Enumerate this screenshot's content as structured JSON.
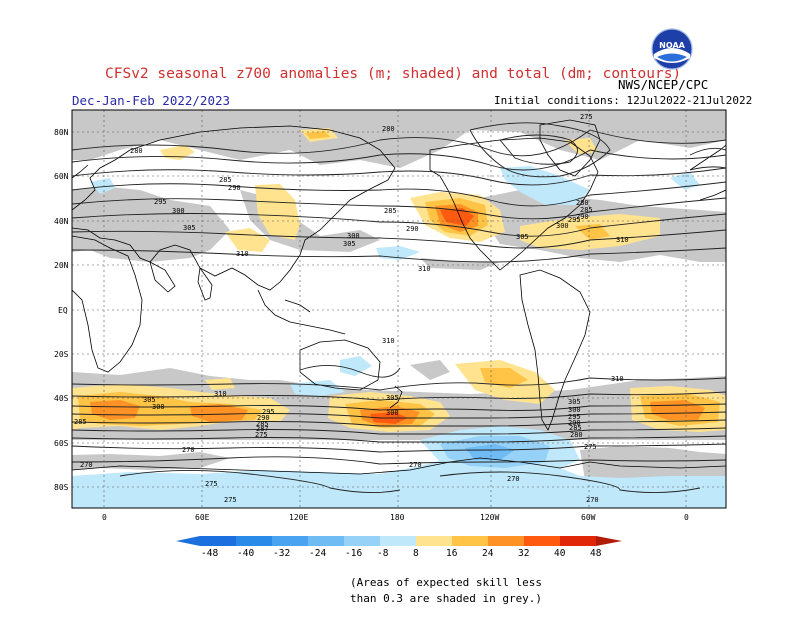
{
  "header": {
    "title": "CFSv2 seasonal z700 anomalies (m; shaded) and total (dm; contours)",
    "season": "Dec-Jan-Feb 2022/2023",
    "initial_conditions": "Initial conditions: 12Jul2022-21Jul2022",
    "agency": "NWS/NCEP/CPC",
    "logo_text": "NOAA"
  },
  "map": {
    "lat_labels": [
      "80N",
      "60N",
      "40N",
      "20N",
      "EQ",
      "20S",
      "40S",
      "60S",
      "80S"
    ],
    "lon_labels": [
      "0",
      "60E",
      "120E",
      "180",
      "120W",
      "60W",
      "0"
    ],
    "contour_labels": [
      "280",
      "275",
      "280",
      "285",
      "290",
      "295",
      "300",
      "305",
      "310",
      "285",
      "290",
      "280",
      "285",
      "290",
      "295",
      "300",
      "305",
      "310",
      "300",
      "305",
      "310",
      "310",
      "305",
      "300",
      "285",
      "295",
      "290",
      "285",
      "287",
      "275",
      "310",
      "305",
      "300",
      "310",
      "305",
      "300",
      "295",
      "290",
      "285",
      "280",
      "275",
      "270",
      "270",
      "275",
      "270",
      "275",
      "270",
      "270"
    ]
  },
  "colorbar": {
    "labels": [
      "-48",
      "-40",
      "-32",
      "-24",
      "-16",
      "-8",
      "8",
      "16",
      "24",
      "32",
      "40",
      "48"
    ],
    "colors": [
      "#1c6fde",
      "#2a8ae8",
      "#4aa3f0",
      "#6fbcf5",
      "#96d2f7",
      "#bfe8fb",
      "#ffffff",
      "#ffe38f",
      "#ffc445",
      "#ff9224",
      "#ff5a10",
      "#e02808",
      "#b01c08"
    ]
  },
  "note": {
    "line1": "(Areas of expected skill less",
    "line2": "than 0.3 are shaded in grey.)"
  }
}
